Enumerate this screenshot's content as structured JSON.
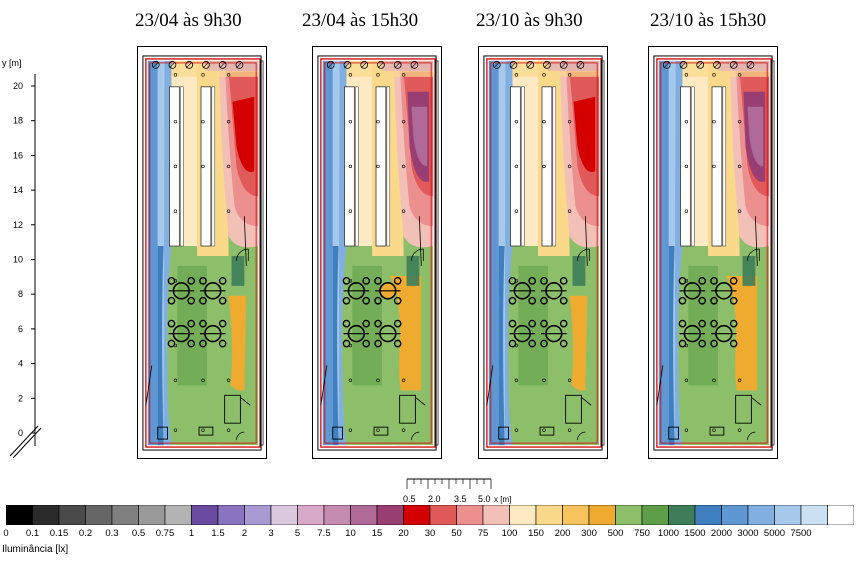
{
  "panels": [
    {
      "title": "23/04 às 9h30",
      "variant": "morning"
    },
    {
      "title": "23/04 às 15h30",
      "variant": "afternoon"
    },
    {
      "title": "23/10 às 9h30",
      "variant": "morning"
    },
    {
      "title": "23/10 às 15h30",
      "variant": "afternoon"
    }
  ],
  "y_axis": {
    "label": "y [m]",
    "ticks": [
      "20",
      "18",
      "16",
      "14",
      "12",
      "10",
      "8",
      "6",
      "4",
      "2",
      "0"
    ]
  },
  "scale_bar": {
    "labels": [
      "0.5",
      "2.0",
      "3.5",
      "5.0"
    ],
    "unit": "x [m]"
  },
  "legend": {
    "labels": [
      "0",
      "0.1",
      "0.15",
      "0.2",
      "0.3",
      "0.5",
      "0.75",
      "1",
      "1.5",
      "2",
      "3",
      "5",
      "7.5",
      "10",
      "15",
      "20",
      "30",
      "50",
      "75",
      "100",
      "150",
      "200",
      "300",
      "500",
      "750",
      "1000",
      "1500",
      "2000",
      "3000",
      "5000",
      "7500"
    ],
    "colors": [
      "#000000",
      "#2b2b2b",
      "#4a4a4a",
      "#666666",
      "#808080",
      "#9a9a9a",
      "#b3b3b3",
      "#6a4ba0",
      "#8a74bf",
      "#a99ad4",
      "#d9c8de",
      "#d8a8c8",
      "#c68bb0",
      "#b06a98",
      "#983e72",
      "#d40000",
      "#e05a5a",
      "#eb8f8f",
      "#f3c0b8",
      "#fde9c2",
      "#fbd98a",
      "#f6c35c",
      "#efaa30",
      "#8dbf6a",
      "#5f9e48",
      "#3e7d5a",
      "#3f7fbf",
      "#5e97d2",
      "#80afe0",
      "#a5c8eb",
      "#cce0f4",
      "#ffffff"
    ],
    "unit": "Iluminância [lx]"
  }
}
